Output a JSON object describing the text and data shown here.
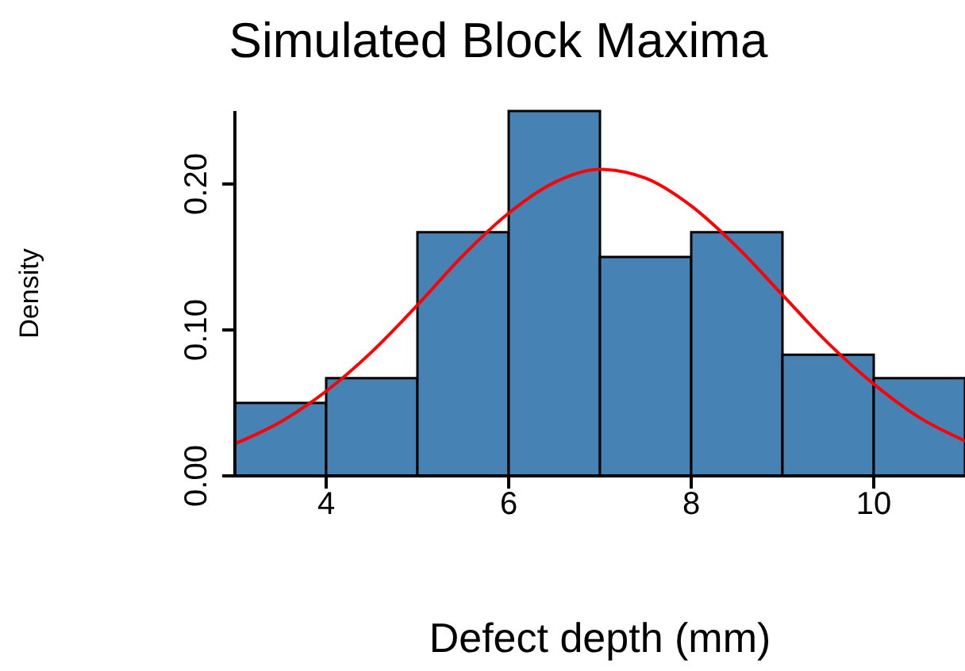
{
  "chart_data": {
    "type": "histogram",
    "title": "Simulated Block Maxima",
    "xlabel": "Defect depth (mm)",
    "ylabel": "Density",
    "bins": [
      3,
      4,
      5,
      6,
      7,
      8,
      9,
      10,
      11
    ],
    "values": [
      0.05,
      0.067,
      0.167,
      0.25,
      0.15,
      0.167,
      0.083,
      0.067
    ],
    "color": "#4682b4",
    "xlim": [
      3,
      11
    ],
    "xticks": [
      4,
      6,
      8,
      10
    ],
    "ylim": [
      0,
      0.25
    ],
    "yticks": [
      {
        "value": 0,
        "label": "0.00"
      },
      {
        "value": 0.1,
        "label": "0.10"
      },
      {
        "value": 0.2,
        "label": "0.20"
      }
    ],
    "series": [
      {
        "type": "line",
        "color": "#ff0000",
        "x": [
          3,
          3.5,
          4,
          4.5,
          5,
          5.5,
          6,
          6.5,
          7,
          7.5,
          8,
          8.5,
          9,
          9.5,
          10,
          10.5,
          11
        ],
        "values": [
          0.022,
          0.037,
          0.058,
          0.085,
          0.117,
          0.151,
          0.18,
          0.201,
          0.21,
          0.204,
          0.185,
          0.157,
          0.124,
          0.091,
          0.063,
          0.04,
          0.024
        ]
      }
    ]
  }
}
